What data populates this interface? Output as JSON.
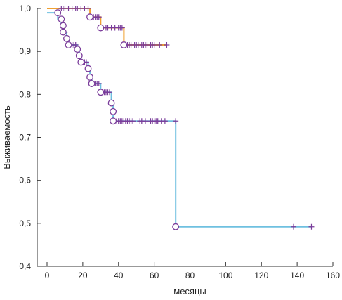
{
  "chart_data": {
    "type": "line",
    "subtype": "kaplan-meier step curves with censor marks",
    "xlabel": "месяцы",
    "ylabel": "Выживаемость",
    "xlim": [
      0,
      160
    ],
    "ylim": [
      0.4,
      1.0
    ],
    "x_ticks": [
      0,
      20,
      40,
      60,
      80,
      100,
      120,
      140,
      160
    ],
    "y_ticks": [
      0.4,
      0.5,
      0.6,
      0.7,
      0.8,
      0.9,
      1.0
    ],
    "y_tick_labels": [
      "0,4",
      "0,5",
      "0,6",
      "0,7",
      "0,8",
      "0,9",
      "1,0"
    ],
    "x_tick_labels": [
      "0",
      "20",
      "40",
      "60",
      "80",
      "100",
      "120",
      "140",
      "160"
    ],
    "grid": false,
    "legend": "none",
    "series": [
      {
        "color": "#f0a030",
        "steps": [
          [
            0,
            1.0
          ],
          [
            24,
            1.0
          ],
          [
            24,
            0.98
          ],
          [
            30,
            0.98
          ],
          [
            30,
            0.955
          ],
          [
            43,
            0.955
          ],
          [
            43,
            0.915
          ],
          [
            67,
            0.915
          ]
        ],
        "events": [
          [
            24,
            0.98
          ],
          [
            30,
            0.955
          ],
          [
            43,
            0.915
          ]
        ],
        "censored": [
          [
            8,
            1.0
          ],
          [
            9,
            1.0
          ],
          [
            10,
            1.0
          ],
          [
            12,
            1.0
          ],
          [
            14,
            1.0
          ],
          [
            16,
            1.0
          ],
          [
            17,
            1.0
          ],
          [
            19,
            1.0
          ],
          [
            21,
            1.0
          ],
          [
            23,
            1.0
          ],
          [
            26,
            0.98
          ],
          [
            27,
            0.98
          ],
          [
            28,
            0.98
          ],
          [
            29,
            0.98
          ],
          [
            33,
            0.955
          ],
          [
            34,
            0.955
          ],
          [
            36,
            0.955
          ],
          [
            38,
            0.955
          ],
          [
            40,
            0.955
          ],
          [
            41,
            0.955
          ],
          [
            42,
            0.955
          ],
          [
            45,
            0.915
          ],
          [
            46,
            0.915
          ],
          [
            47,
            0.915
          ],
          [
            49,
            0.915
          ],
          [
            50,
            0.915
          ],
          [
            51,
            0.915
          ],
          [
            53,
            0.915
          ],
          [
            54,
            0.915
          ],
          [
            55,
            0.915
          ],
          [
            56,
            0.915
          ],
          [
            58,
            0.915
          ],
          [
            59,
            0.915
          ],
          [
            60,
            0.915
          ],
          [
            63,
            0.915
          ],
          [
            67,
            0.915
          ]
        ]
      },
      {
        "color": "#6fc0e0",
        "steps": [
          [
            0,
            0.99
          ],
          [
            6,
            0.99
          ],
          [
            6,
            0.975
          ],
          [
            8,
            0.975
          ],
          [
            8,
            0.96
          ],
          [
            9,
            0.96
          ],
          [
            9,
            0.945
          ],
          [
            11,
            0.945
          ],
          [
            11,
            0.93
          ],
          [
            12,
            0.93
          ],
          [
            12,
            0.915
          ],
          [
            17,
            0.915
          ],
          [
            17,
            0.905
          ],
          [
            18,
            0.905
          ],
          [
            18,
            0.89
          ],
          [
            19,
            0.89
          ],
          [
            19,
            0.875
          ],
          [
            23,
            0.875
          ],
          [
            23,
            0.86
          ],
          [
            24,
            0.86
          ],
          [
            24,
            0.84
          ],
          [
            25,
            0.84
          ],
          [
            25,
            0.825
          ],
          [
            30,
            0.825
          ],
          [
            30,
            0.805
          ],
          [
            36,
            0.805
          ],
          [
            36,
            0.78
          ],
          [
            37,
            0.78
          ],
          [
            37,
            0.76
          ],
          [
            37,
            0.76
          ],
          [
            37,
            0.738
          ],
          [
            72,
            0.738
          ],
          [
            72,
            0.492
          ],
          [
            148,
            0.492
          ]
        ],
        "events": [
          [
            6,
            0.99
          ],
          [
            8,
            0.975
          ],
          [
            9,
            0.96
          ],
          [
            9,
            0.945
          ],
          [
            11,
            0.93
          ],
          [
            12,
            0.915
          ],
          [
            17,
            0.905
          ],
          [
            18,
            0.89
          ],
          [
            19,
            0.875
          ],
          [
            23,
            0.86
          ],
          [
            24,
            0.84
          ],
          [
            25,
            0.825
          ],
          [
            30,
            0.805
          ],
          [
            36,
            0.78
          ],
          [
            37,
            0.76
          ],
          [
            37,
            0.738
          ],
          [
            72,
            0.492
          ]
        ],
        "censored": [
          [
            10,
            0.945
          ],
          [
            14,
            0.915
          ],
          [
            15,
            0.915
          ],
          [
            16,
            0.915
          ],
          [
            21,
            0.875
          ],
          [
            22,
            0.875
          ],
          [
            27,
            0.825
          ],
          [
            28,
            0.825
          ],
          [
            29,
            0.825
          ],
          [
            32,
            0.805
          ],
          [
            33,
            0.805
          ],
          [
            34,
            0.805
          ],
          [
            35,
            0.805
          ],
          [
            39,
            0.738
          ],
          [
            40,
            0.738
          ],
          [
            41,
            0.738
          ],
          [
            42,
            0.738
          ],
          [
            43,
            0.738
          ],
          [
            44,
            0.738
          ],
          [
            45,
            0.738
          ],
          [
            46,
            0.738
          ],
          [
            47,
            0.738
          ],
          [
            48,
            0.738
          ],
          [
            52,
            0.738
          ],
          [
            53,
            0.738
          ],
          [
            55,
            0.738
          ],
          [
            58,
            0.738
          ],
          [
            59,
            0.738
          ],
          [
            60,
            0.738
          ],
          [
            61,
            0.738
          ],
          [
            62,
            0.738
          ],
          [
            64,
            0.738
          ],
          [
            66,
            0.738
          ],
          [
            72,
            0.738
          ],
          [
            138,
            0.492
          ],
          [
            148,
            0.492
          ]
        ]
      }
    ]
  }
}
